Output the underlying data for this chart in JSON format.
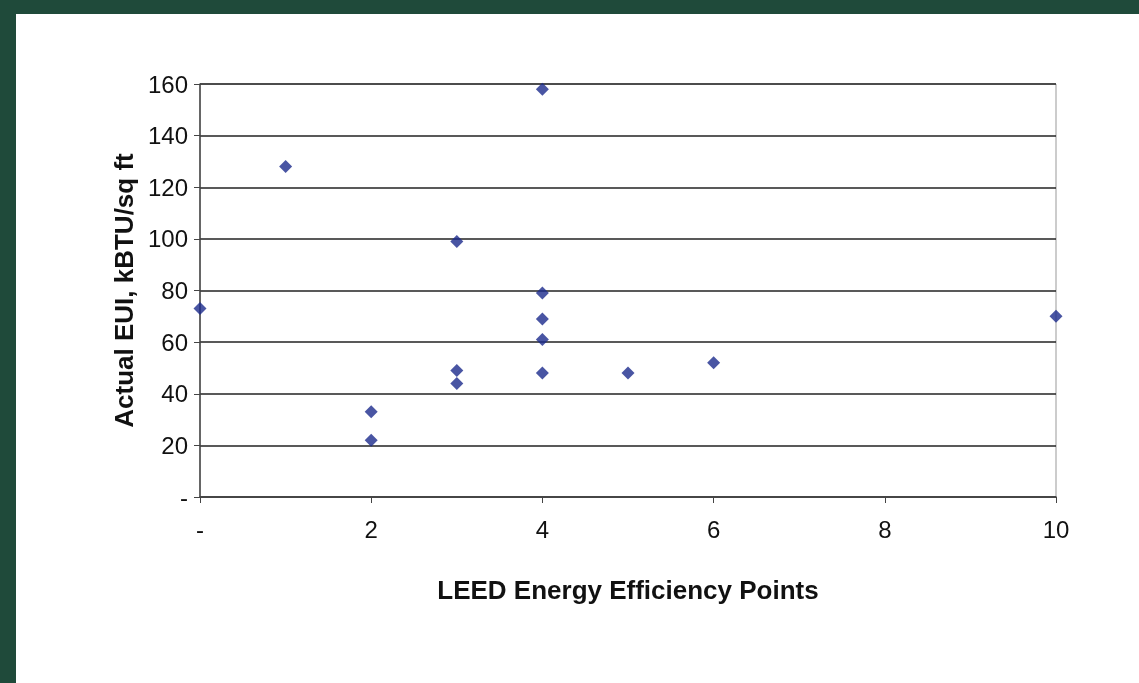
{
  "chart_data": {
    "type": "scatter",
    "xlabel": "LEED Energy Efficiency Points",
    "ylabel": "Actual EUI, kBTU/sq ft",
    "x": [
      0,
      1,
      2,
      2,
      3,
      3,
      3,
      4,
      4,
      4,
      4,
      4,
      5,
      6,
      10
    ],
    "values": [
      73,
      128,
      33,
      22,
      99,
      49,
      44,
      158,
      79,
      69,
      61,
      48,
      48,
      52,
      70
    ],
    "color": "#1c2a8c",
    "marker": "diamond",
    "grid": "y",
    "xlim": [
      0,
      10
    ],
    "xticks": [
      {
        "value": 0,
        "label": "-"
      },
      2,
      4,
      6,
      8,
      10
    ],
    "ylim": [
      0,
      160
    ],
    "yticks": [
      {
        "value": 0,
        "label": "-"
      },
      20,
      40,
      60,
      80,
      100,
      120,
      140,
      160
    ]
  }
}
